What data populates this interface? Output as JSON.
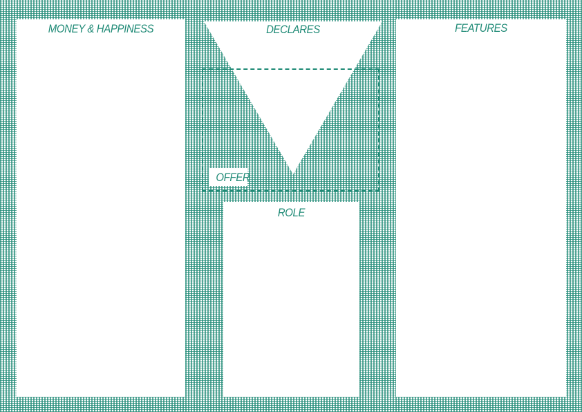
{
  "canvas": {
    "pattern_color": "#1f8a76",
    "panel_color": "#ffffff",
    "text_color": "#1f8a76"
  },
  "blocks": {
    "money_happiness": {
      "label": "MONEY & HAPPINESS"
    },
    "declares": {
      "label": "DECLARES"
    },
    "features": {
      "label": "FEATURES"
    },
    "offer": {
      "label": "OFFER"
    },
    "role": {
      "label": "ROLE"
    }
  }
}
